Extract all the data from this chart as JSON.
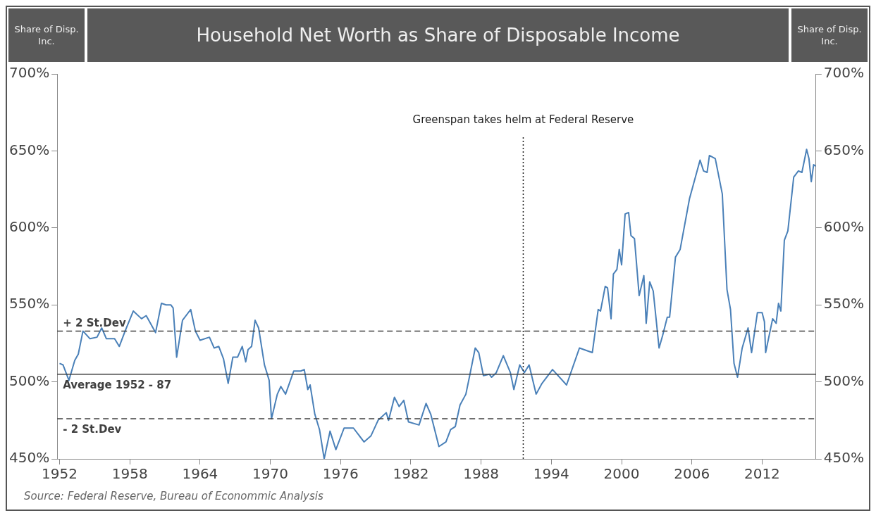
{
  "chart_data": {
    "type": "line",
    "title": "Household Net Worth as Share of Disposable Income",
    "ylabel": "Share of Disp. Inc.",
    "y2label": "Share of Disp. Inc.",
    "annotations": [
      "Source: Federal Reserve, Bureau of Econommic Analysis"
    ],
    "xlim": [
      1951.8,
      2016.6
    ],
    "xticks": [
      1952,
      1958,
      1964,
      1970,
      1976,
      1982,
      1988,
      1994,
      2000,
      2006,
      2012
    ],
    "ylim": [
      450,
      700
    ],
    "yticks": [
      {
        "value": 450,
        "label": "450%"
      },
      {
        "value": 500,
        "label": "500%"
      },
      {
        "value": 550,
        "label": "550%"
      },
      {
        "value": 600,
        "label": "600%"
      },
      {
        "value": 650,
        "label": "650%"
      },
      {
        "value": 700,
        "label": "700%"
      }
    ],
    "y2lim": [
      450,
      700
    ],
    "y2ticks": [
      {
        "value": 450,
        "label": "450%"
      },
      {
        "value": 500,
        "label": "500%"
      },
      {
        "value": 550,
        "label": "550%"
      },
      {
        "value": 600,
        "label": "600%"
      },
      {
        "value": 650,
        "label": "650%"
      },
      {
        "value": 700,
        "label": "700%"
      }
    ],
    "grid": false,
    "legend": false,
    "marker": "none",
    "line_style": "solid",
    "ref_lines": [
      {
        "axis": "y",
        "value": 533,
        "label": "+ 2 St.Dev",
        "color": "#404040",
        "line_style": "dashed"
      },
      {
        "axis": "y",
        "value": 505,
        "label": "Average 1952 - 87",
        "color": "#404040",
        "line_style": "solid"
      },
      {
        "axis": "y",
        "value": 476,
        "label": "- 2 St.Dev",
        "color": "#404040",
        "line_style": "dashed"
      },
      {
        "axis": "x",
        "value": 1991.6,
        "label": "Greenspan takes helm at Federal Reserve",
        "color": "#202020",
        "line_style": "dotted"
      }
    ],
    "series": [
      {
        "color": "#4a80b8",
        "x": [
          1952,
          1952.3,
          1952.8,
          1953.3,
          1953.6,
          1954.0,
          1954.6,
          1955.2,
          1955.6,
          1956.0,
          1956.7,
          1957.1,
          1957.6,
          1958.3,
          1959.0,
          1959.4,
          1960.2,
          1960.7,
          1961.1,
          1961.5,
          1961.7,
          1962.0,
          1962.5,
          1963.2,
          1963.6,
          1964.0,
          1964.8,
          1965.2,
          1965.6,
          1966.0,
          1966.4,
          1966.8,
          1967.2,
          1967.6,
          1967.9,
          1968.1,
          1968.4,
          1968.7,
          1969.0,
          1969.5,
          1969.9,
          1970.1,
          1970.6,
          1970.9,
          1971.3,
          1972.0,
          1972.6,
          1972.9,
          1973.2,
          1973.4,
          1973.8,
          1974.2,
          1974.6,
          1975.1,
          1975.6,
          1976.3,
          1977.1,
          1978.0,
          1978.6,
          1979.2,
          1979.9,
          1980.1,
          1980.6,
          1981.0,
          1981.4,
          1981.8,
          1982.7,
          1983.3,
          1983.7,
          1984.4,
          1985.0,
          1985.4,
          1985.8,
          1986.2,
          1986.7,
          1987.0,
          1987.5,
          1987.8,
          1988.2,
          1988.7,
          1988.9,
          1989.3,
          1989.9,
          1990.5,
          1990.8,
          1991.3,
          1991.7,
          1992.1,
          1992.7,
          1993.2,
          1994.1,
          1995.3,
          1996.4,
          1997.5,
          1998.0,
          1998.2,
          1998.6,
          1998.8,
          1999.1,
          1999.3,
          1999.6,
          1999.8,
          2000.0,
          2000.3,
          2000.6,
          2000.8,
          2001.1,
          2001.5,
          2001.9,
          2002.1,
          2002.4,
          2002.7,
          2003.2,
          2003.5,
          2003.9,
          2004.1,
          2004.6,
          2005.0,
          2005.8,
          2006.7,
          2007.0,
          2007.3,
          2007.5,
          2008.0,
          2008.6,
          2009.0,
          2009.3,
          2009.6,
          2009.9,
          2010.3,
          2010.8,
          2011.1,
          2011.6,
          2012.0,
          2012.2,
          2012.3,
          2012.9,
          2013.2,
          2013.4,
          2013.6,
          2013.9,
          2014.2,
          2014.7,
          2015.1,
          2015.4,
          2015.8,
          2016.0,
          2016.2,
          2016.4,
          2016.6
        ],
        "values": [
          512,
          511,
          501,
          514,
          518,
          533,
          528,
          529,
          535,
          528,
          528,
          523,
          533,
          546,
          541,
          543,
          532,
          551,
          550,
          550,
          548,
          516,
          540,
          547,
          533,
          527,
          529,
          522,
          523,
          515,
          499,
          516,
          516,
          523,
          513,
          521,
          523,
          540,
          535,
          511,
          501,
          476,
          492,
          497,
          492,
          507,
          507,
          508,
          495,
          498,
          479,
          469,
          450,
          468,
          456,
          470,
          470,
          461,
          465,
          475,
          480,
          475,
          490,
          484,
          488,
          474,
          472,
          486,
          479,
          458,
          461,
          469,
          471,
          485,
          492,
          503,
          522,
          519,
          504,
          505,
          503,
          506,
          517,
          506,
          495,
          511,
          506,
          511,
          492,
          499,
          508,
          498,
          522,
          519,
          547,
          546,
          562,
          561,
          541,
          570,
          573,
          586,
          576,
          609,
          610,
          595,
          593,
          556,
          569,
          538,
          565,
          559,
          522,
          530,
          542,
          542,
          581,
          586,
          619,
          644,
          637,
          636,
          647,
          645,
          622,
          560,
          547,
          512,
          503,
          522,
          535,
          519,
          545,
          545,
          539,
          519,
          541,
          538,
          551,
          546,
          592,
          598,
          633,
          637,
          636,
          651,
          645,
          630,
          641,
          640
        ]
      }
    ]
  }
}
